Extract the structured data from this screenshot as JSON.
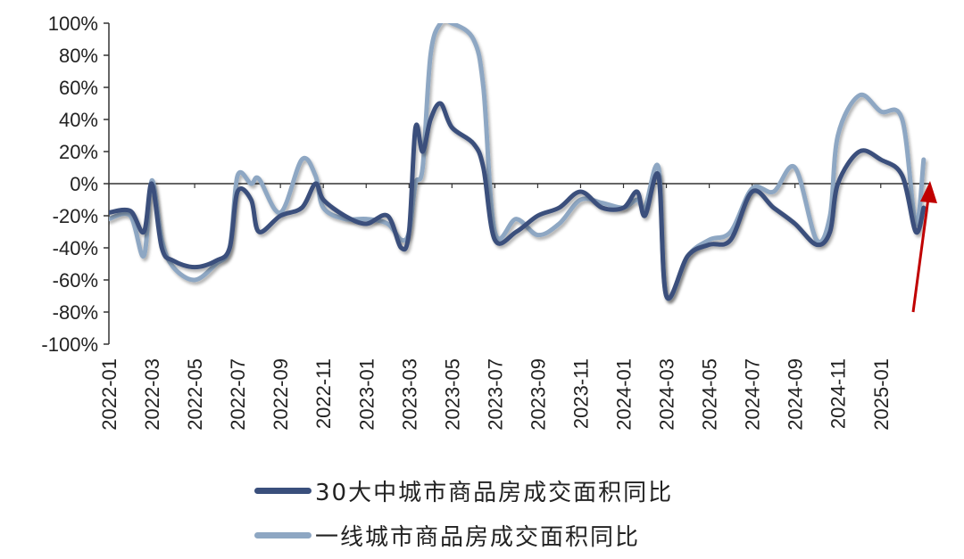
{
  "chart_data": {
    "type": "line",
    "title": "",
    "xlabel": "",
    "ylabel": "",
    "ylim": [
      -100,
      100
    ],
    "x_tick_labels": [
      "2022-01",
      "2022-03",
      "2022-05",
      "2022-07",
      "2022-09",
      "2022-11",
      "2023-01",
      "2023-03",
      "2023-05",
      "2023-07",
      "2023-09",
      "2023-11",
      "2024-01",
      "2024-03",
      "2024-05",
      "2024-07",
      "2024-09",
      "2024-11",
      "2025-01"
    ],
    "y_tick_labels": [
      "100%",
      "80%",
      "60%",
      "40%",
      "20%",
      "0%",
      "-20%",
      "-40%",
      "-60%",
      "-80%",
      "-100%"
    ],
    "y_ticks": [
      100,
      80,
      60,
      40,
      20,
      0,
      -20,
      -40,
      -60,
      -80,
      -100
    ],
    "x_months_range": [
      "2022-01",
      "2025-03"
    ],
    "grid": false,
    "legend_position": "bottom",
    "series": [
      {
        "name": "30大中城市商品房成交面积同比",
        "color": "#3a4f7c",
        "x": [
          "2022-01",
          "2022-02",
          "2022-02-20",
          "2022-03",
          "2022-03-15",
          "2022-04",
          "2022-05",
          "2022-06",
          "2022-06-20",
          "2022-07",
          "2022-07-20",
          "2022-08",
          "2022-09",
          "2022-10",
          "2022-10-20",
          "2022-11",
          "2022-12",
          "2023-01",
          "2023-02",
          "2023-02-20",
          "2023-03",
          "2023-03-10",
          "2023-03-20",
          "2023-04",
          "2023-04-15",
          "2023-05",
          "2023-06",
          "2023-06-15",
          "2023-07",
          "2023-08",
          "2023-09",
          "2023-10",
          "2023-11",
          "2023-12",
          "2024-01",
          "2024-01-20",
          "2024-02",
          "2024-02-20",
          "2024-03",
          "2024-04",
          "2024-05",
          "2024-06",
          "2024-07",
          "2024-08",
          "2024-09",
          "2024-10",
          "2024-10-20",
          "2024-11",
          "2024-12",
          "2025-01",
          "2025-02",
          "2025-02-20",
          "2025-03"
        ],
        "values": [
          -18,
          -17,
          -30,
          0,
          -40,
          -48,
          -52,
          -48,
          -40,
          -5,
          -10,
          -30,
          -20,
          -15,
          0,
          -10,
          -20,
          -25,
          -20,
          -40,
          -30,
          35,
          20,
          40,
          50,
          35,
          25,
          10,
          -35,
          -30,
          -20,
          -15,
          -5,
          -15,
          -15,
          -5,
          -20,
          5,
          -70,
          -45,
          -38,
          -35,
          -5,
          -15,
          -25,
          -38,
          -30,
          0,
          20,
          15,
          5,
          -30,
          -15
        ]
      },
      {
        "name": "一线城市商品房成交面积同比",
        "color": "#8ea7c3",
        "x": [
          "2022-01",
          "2022-02",
          "2022-02-20",
          "2022-03",
          "2022-03-15",
          "2022-04",
          "2022-05",
          "2022-06",
          "2022-06-20",
          "2022-07",
          "2022-07-20",
          "2022-08",
          "2022-09",
          "2022-10",
          "2022-10-20",
          "2022-11",
          "2022-12",
          "2023-01",
          "2023-02",
          "2023-02-20",
          "2023-03",
          "2023-03-10",
          "2023-03-20",
          "2023-04",
          "2023-04-15",
          "2023-05",
          "2023-06",
          "2023-06-15",
          "2023-07",
          "2023-08",
          "2023-09",
          "2023-10",
          "2023-11",
          "2023-12",
          "2024-01",
          "2024-01-20",
          "2024-02",
          "2024-02-20",
          "2024-03",
          "2024-04",
          "2024-05",
          "2024-06",
          "2024-07",
          "2024-08",
          "2024-09",
          "2024-10",
          "2024-10-20",
          "2024-11",
          "2024-12",
          "2025-01",
          "2025-02",
          "2025-02-20",
          "2025-03"
        ],
        "values": [
          -22,
          -20,
          -45,
          2,
          -35,
          -52,
          -60,
          -50,
          -40,
          5,
          0,
          3,
          -18,
          15,
          5,
          -15,
          -22,
          -22,
          -25,
          -35,
          -30,
          0,
          10,
          80,
          100,
          100,
          90,
          60,
          -30,
          -22,
          -32,
          -25,
          -10,
          -12,
          -15,
          -10,
          -15,
          10,
          -70,
          -45,
          -35,
          -30,
          -3,
          -5,
          10,
          -35,
          -20,
          30,
          55,
          45,
          40,
          -25,
          15
        ]
      }
    ]
  },
  "legend": {
    "items": [
      {
        "label": "30大中城市商品房成交面积同比",
        "color": "#3a4f7c"
      },
      {
        "label": "一线城市商品房成交面积同比",
        "color": "#8ea7c3"
      }
    ]
  },
  "annotation": {
    "arrow_color": "#c00000"
  }
}
